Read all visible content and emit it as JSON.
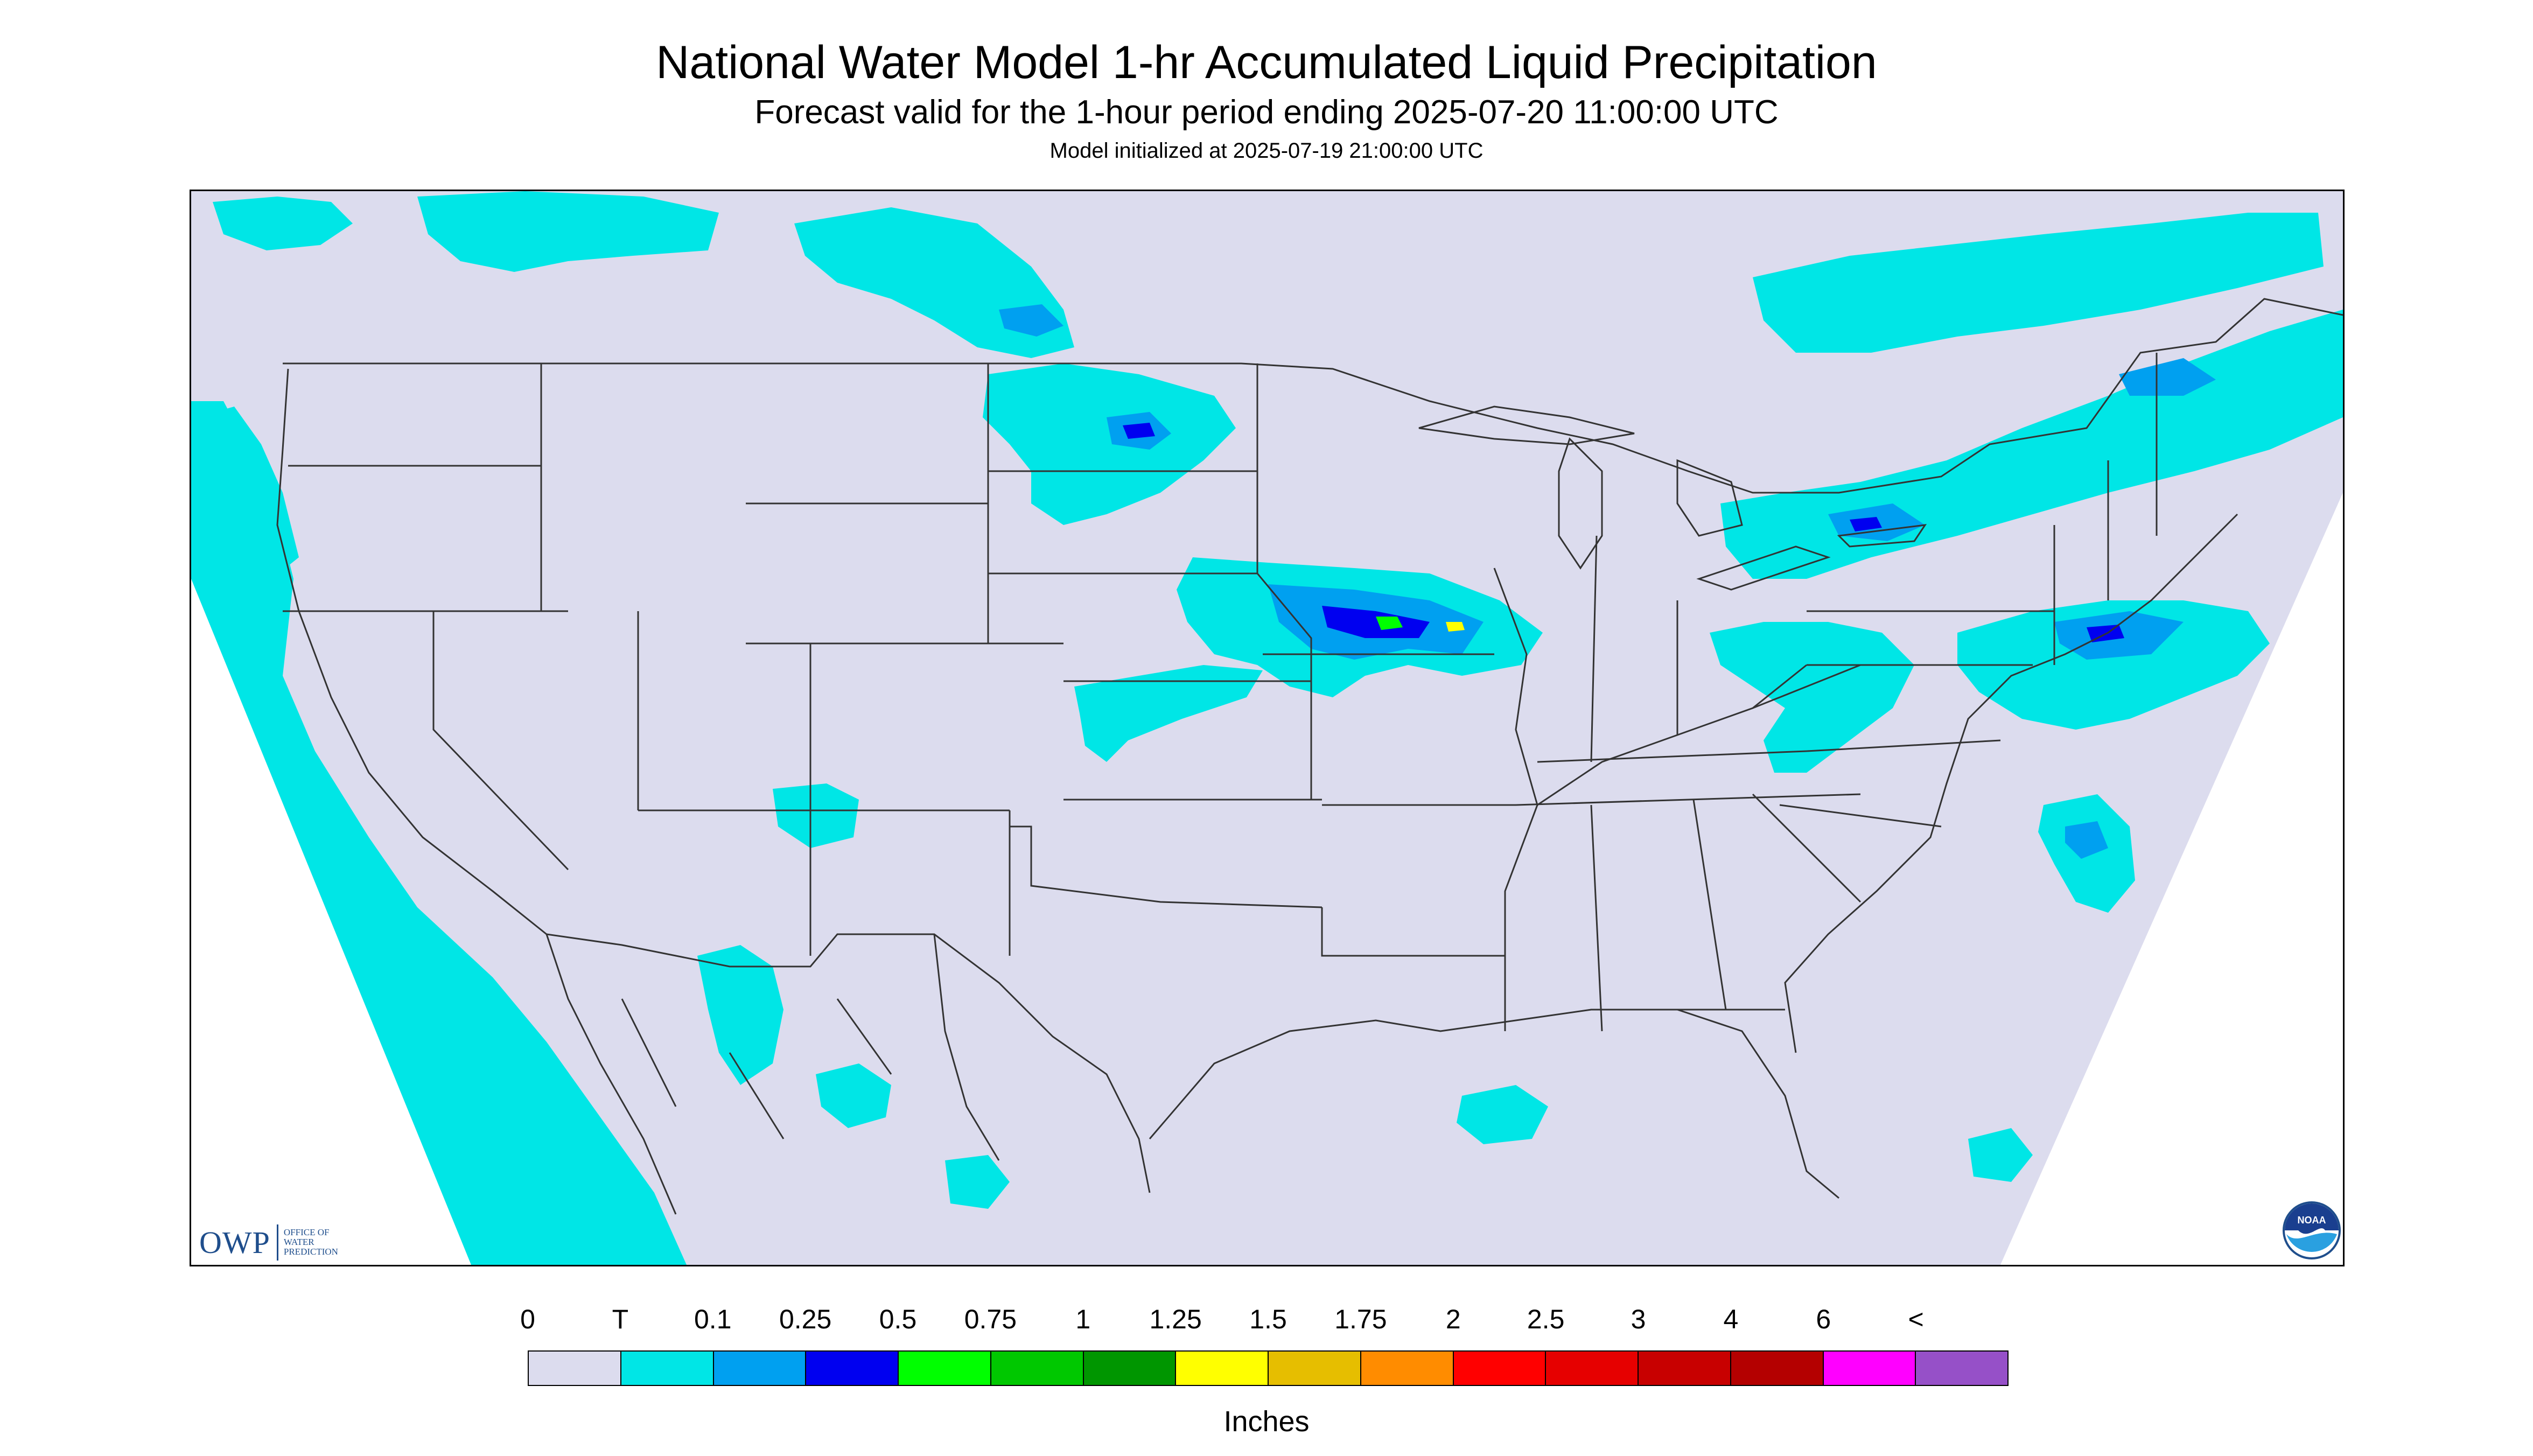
{
  "header": {
    "title": "National Water Model 1-hr Accumulated Liquid Precipitation",
    "subtitle": "Forecast valid for the 1-hour period ending 2025-07-20 11:00:00 UTC",
    "init_line": "Model initialized at 2025-07-19 21:00:00 UTC"
  },
  "colors": {
    "map_background": "#dcdcee",
    "land_lines": "#333333",
    "trace": "#00e6e6"
  },
  "legend": {
    "labels": [
      "0",
      "T",
      "0.1",
      "0.25",
      "0.5",
      "0.75",
      "1",
      "1.25",
      "1.5",
      "1.75",
      "2",
      "2.5",
      "3",
      "4",
      "6",
      "<"
    ],
    "colors": [
      "#dcdcee",
      "#00e6e6",
      "#00a0f0",
      "#0000f0",
      "#00ff00",
      "#00c800",
      "#009600",
      "#ffff00",
      "#e6be00",
      "#ff8c00",
      "#ff0000",
      "#e60000",
      "#c80000",
      "#b40000",
      "#ff00ff",
      "#9650c8"
    ],
    "units": "Inches"
  },
  "logos": {
    "owp_letters": "OWP",
    "owp_words": "OFFICE OF\nWATER\nPREDICTION",
    "noaa_text": "NOAA"
  },
  "precip_areas": [
    {
      "name": "pacific-coast",
      "level": "T"
    },
    {
      "name": "north-plains-canada",
      "level": "T"
    },
    {
      "name": "upper-midwest-storms",
      "level": "0.5"
    },
    {
      "name": "great-lakes-northeast",
      "level": "0.25"
    },
    {
      "name": "ohio-valley",
      "level": "T"
    },
    {
      "name": "atlantic-offshore",
      "level": "0.25"
    },
    {
      "name": "southwest-monsoon",
      "level": "T"
    },
    {
      "name": "gulf-scattered",
      "level": "T"
    }
  ]
}
